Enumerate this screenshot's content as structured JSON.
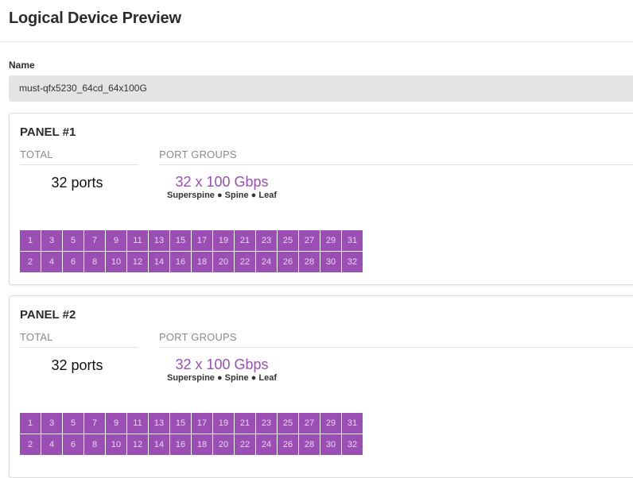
{
  "page": {
    "title": "Logical Device Preview"
  },
  "name_field": {
    "label": "Name",
    "value": "must-qfx5230_64cd_64x100G"
  },
  "colors": {
    "port_fill": "#9b4fb4",
    "port_group_text": "#9b4fb4"
  },
  "panels": [
    {
      "title": "PANEL #1",
      "total_header": "TOTAL",
      "groups_header": "PORT GROUPS",
      "total_value": "32 ports",
      "group_speed": "32 x 100 Gbps",
      "group_roles": "Superspine ● Spine ● Leaf",
      "ports_top": [
        "1",
        "3",
        "5",
        "7",
        "9",
        "11",
        "13",
        "15",
        "17",
        "19",
        "21",
        "23",
        "25",
        "27",
        "29",
        "31"
      ],
      "ports_bottom": [
        "2",
        "4",
        "6",
        "8",
        "10",
        "12",
        "14",
        "16",
        "18",
        "20",
        "22",
        "24",
        "26",
        "28",
        "30",
        "32"
      ]
    },
    {
      "title": "PANEL #2",
      "total_header": "TOTAL",
      "groups_header": "PORT GROUPS",
      "total_value": "32 ports",
      "group_speed": "32 x 100 Gbps",
      "group_roles": "Superspine ● Spine ● Leaf",
      "ports_top": [
        "1",
        "3",
        "5",
        "7",
        "9",
        "11",
        "13",
        "15",
        "17",
        "19",
        "21",
        "23",
        "25",
        "27",
        "29",
        "31"
      ],
      "ports_bottom": [
        "2",
        "4",
        "6",
        "8",
        "10",
        "12",
        "14",
        "16",
        "18",
        "20",
        "22",
        "24",
        "26",
        "28",
        "30",
        "32"
      ]
    }
  ]
}
